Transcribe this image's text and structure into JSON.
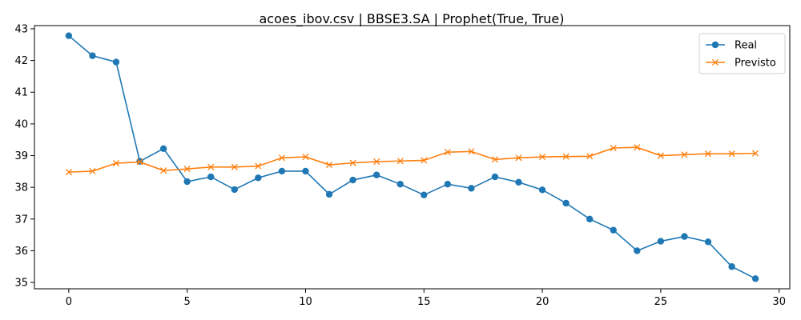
{
  "chart_data": {
    "type": "line",
    "title": "acoes_ibov.csv | BBSE3.SA | Prophet(True, True)",
    "xlabel": "",
    "ylabel": "",
    "xlim": [
      -1.45,
      30.45
    ],
    "ylim": [
      34.8,
      43.1
    ],
    "x_ticks": [
      0,
      5,
      10,
      15,
      20,
      25,
      30
    ],
    "y_ticks": [
      35,
      36,
      37,
      38,
      39,
      40,
      41,
      42,
      43
    ],
    "grid": false,
    "legend": "top-right",
    "x": [
      0,
      1,
      2,
      3,
      4,
      5,
      6,
      7,
      8,
      9,
      10,
      11,
      12,
      13,
      14,
      15,
      16,
      17,
      18,
      19,
      20,
      21,
      22,
      23,
      24,
      25,
      26,
      27,
      28,
      29
    ],
    "series": [
      {
        "name": "Real",
        "color": "#1f77b4",
        "marker": "circle",
        "values": [
          42.78,
          42.15,
          41.95,
          38.82,
          39.22,
          38.18,
          38.33,
          37.93,
          38.3,
          38.51,
          38.51,
          37.78,
          38.23,
          38.39,
          38.1,
          37.76,
          38.1,
          37.97,
          38.33,
          38.16,
          37.92,
          37.5,
          37.0,
          36.65,
          36.0,
          36.3,
          36.45,
          36.28,
          35.5,
          35.12
        ]
      },
      {
        "name": "Previsto",
        "color": "#ff7f0e",
        "marker": "x",
        "values": [
          38.48,
          38.51,
          38.76,
          38.8,
          38.53,
          38.58,
          38.64,
          38.64,
          38.67,
          38.93,
          38.96,
          38.71,
          38.77,
          38.81,
          38.83,
          38.85,
          39.11,
          39.13,
          38.88,
          38.93,
          38.96,
          38.97,
          38.98,
          39.24,
          39.26,
          39.0,
          39.03,
          39.06,
          39.06,
          39.07
        ]
      }
    ]
  }
}
